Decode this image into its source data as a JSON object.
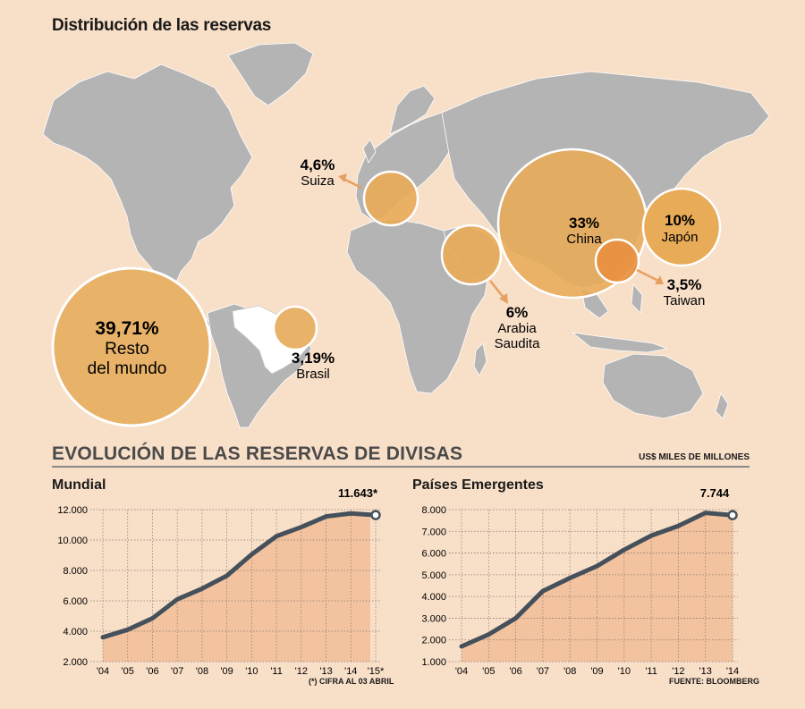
{
  "map": {
    "title": "Distribución de las reservas",
    "bubbles": [
      {
        "id": "china",
        "pct": "33%",
        "label": [
          "China"
        ]
      },
      {
        "id": "japon",
        "pct": "10%",
        "label": [
          "Japón"
        ]
      },
      {
        "id": "taiwan",
        "pct": "3,5%",
        "label": [
          "Taiwan"
        ]
      },
      {
        "id": "arabia",
        "pct": "6%",
        "label": [
          "Arabia",
          "Saudita"
        ]
      },
      {
        "id": "suiza",
        "pct": "4,6%",
        "label": [
          "Suiza"
        ]
      },
      {
        "id": "brasil",
        "pct": "3,19%",
        "label": [
          "Brasil"
        ]
      },
      {
        "id": "resto",
        "pct": "39,71%",
        "label": [
          "Resto",
          "del mundo"
        ]
      }
    ]
  },
  "section": {
    "title": "EVOLUCIÓN DE LAS RESERVAS DE DIVISAS",
    "units": "US$ MILES DE MILLONES"
  },
  "notes": {
    "mundial": "(*) CIFRA AL 03 ABRIL",
    "fuente": "FUENTE: BLOOMBERG"
  },
  "colors": {
    "line": "#45505a",
    "fill": "#f3c3a0",
    "bubble": "#e8b268",
    "land": "#b4b4b4"
  },
  "chart_data": [
    {
      "id": "mundial",
      "type": "area",
      "title": "Mundial",
      "categories": [
        "'04",
        "'05",
        "'06",
        "'07",
        "'08",
        "'09",
        "'10",
        "'11",
        "'12",
        "'13",
        "'14",
        "'15*"
      ],
      "values": [
        3600,
        4100,
        4850,
        6100,
        6800,
        7650,
        9050,
        10250,
        10850,
        11550,
        11750,
        11643
      ],
      "yticks": [
        "2.000",
        "4.000",
        "6.000",
        "8.000",
        "10.000",
        "12.000"
      ],
      "ylim": [
        2000,
        12000
      ],
      "last_label": "11.643*",
      "xlabel": "",
      "ylabel": ""
    },
    {
      "id": "emergentes",
      "type": "area",
      "title": "Países Emergentes",
      "categories": [
        "'04",
        "'05",
        "'06",
        "'07",
        "'08",
        "'09",
        "'10",
        "'11",
        "'12",
        "'13",
        "'14"
      ],
      "values": [
        1700,
        2250,
        3000,
        4250,
        4850,
        5400,
        6150,
        6800,
        7250,
        7850,
        7744
      ],
      "yticks": [
        "1.000",
        "2.000",
        "3.000",
        "4.000",
        "5.000",
        "6.000",
        "7.000",
        "8.000"
      ],
      "ylim": [
        1000,
        8000
      ],
      "last_label": "7.744",
      "xlabel": "",
      "ylabel": ""
    }
  ]
}
